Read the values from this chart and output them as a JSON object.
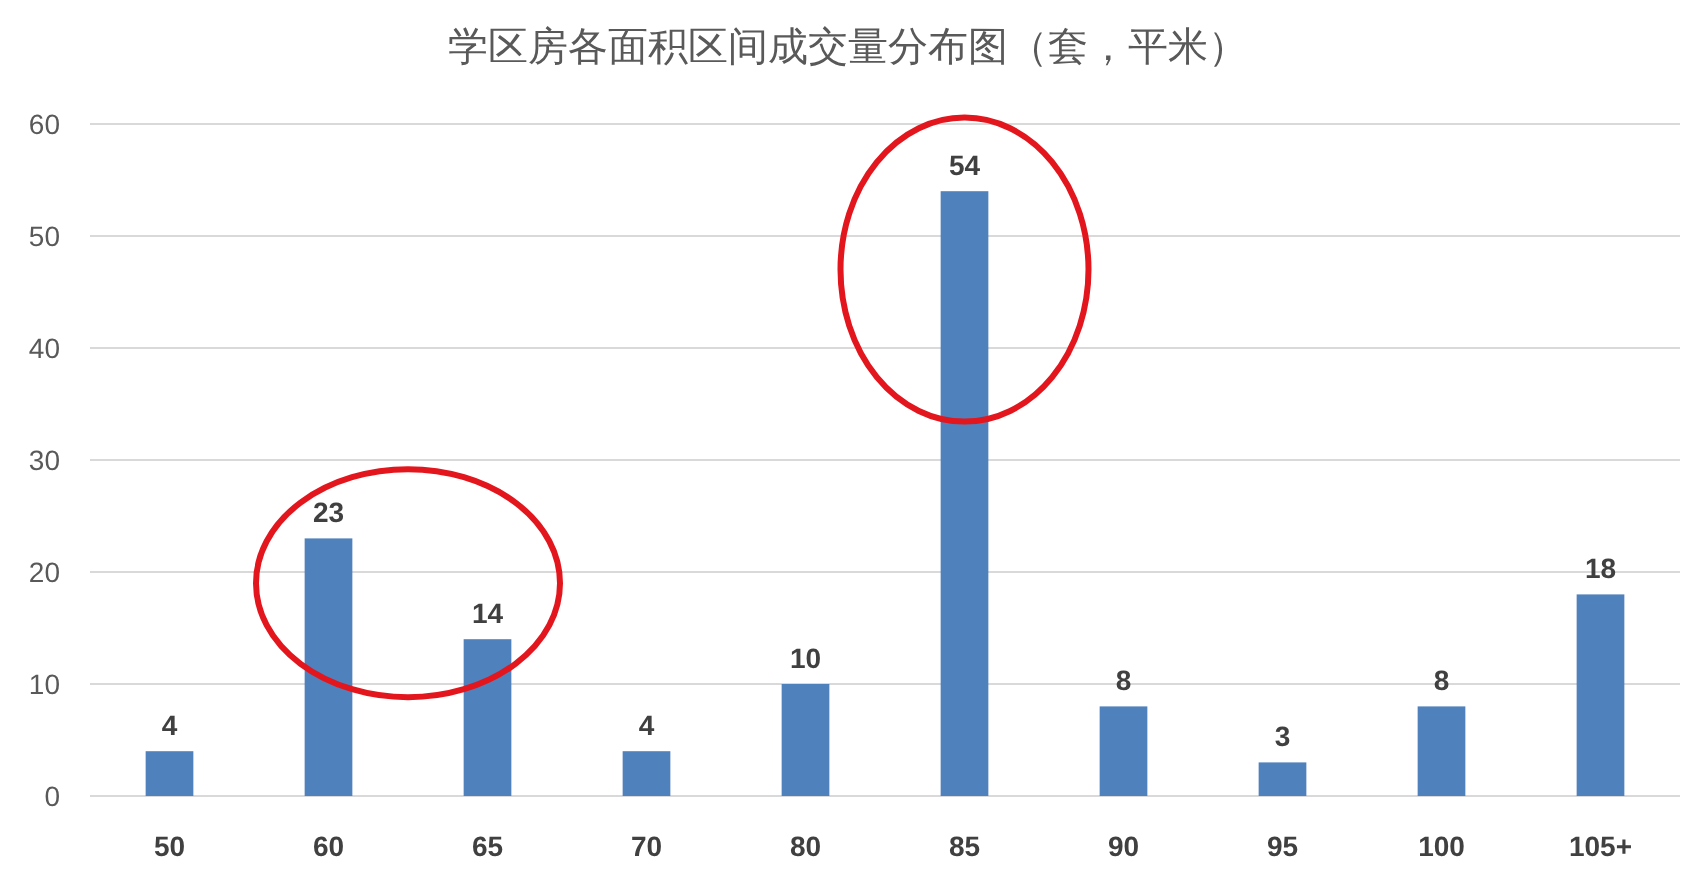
{
  "chart_data": {
    "type": "bar",
    "title": "学区房各面积区间成交量分布图（套，平米）",
    "categories": [
      "50",
      "60",
      "65",
      "70",
      "80",
      "85",
      "90",
      "95",
      "100",
      "105+"
    ],
    "values": [
      4,
      23,
      14,
      4,
      10,
      54,
      8,
      3,
      8,
      18
    ],
    "color": "#4f81bd",
    "ylim": [
      0,
      60
    ],
    "yticks": [
      0,
      10,
      20,
      30,
      40,
      50,
      60
    ],
    "grid": "y",
    "data_labels": true
  }
}
